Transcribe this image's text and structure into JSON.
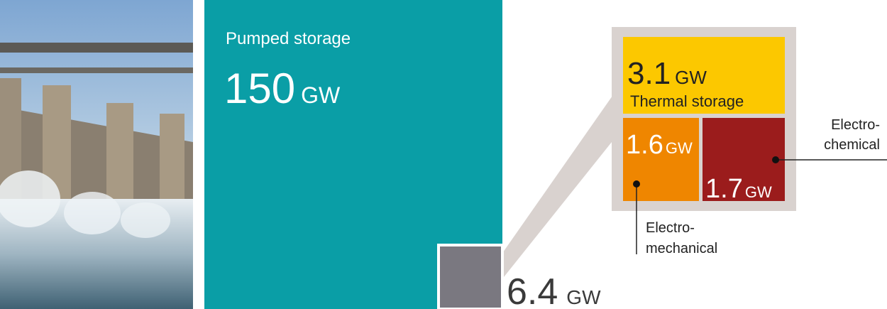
{
  "pumped": {
    "label": "Pumped storage",
    "value": "150",
    "unit": "GW"
  },
  "other": {
    "value": "6.4",
    "unit": "GW"
  },
  "thermal": {
    "value": "3.1",
    "unit": "GW",
    "label": "Thermal storage"
  },
  "electromechanical": {
    "value": "1.6",
    "unit": "GW",
    "label": [
      "Electro-",
      "mechanical"
    ]
  },
  "electrochemical": {
    "value": "1.7",
    "unit": "GW",
    "label": [
      "Electro-",
      "chemical"
    ]
  }
}
